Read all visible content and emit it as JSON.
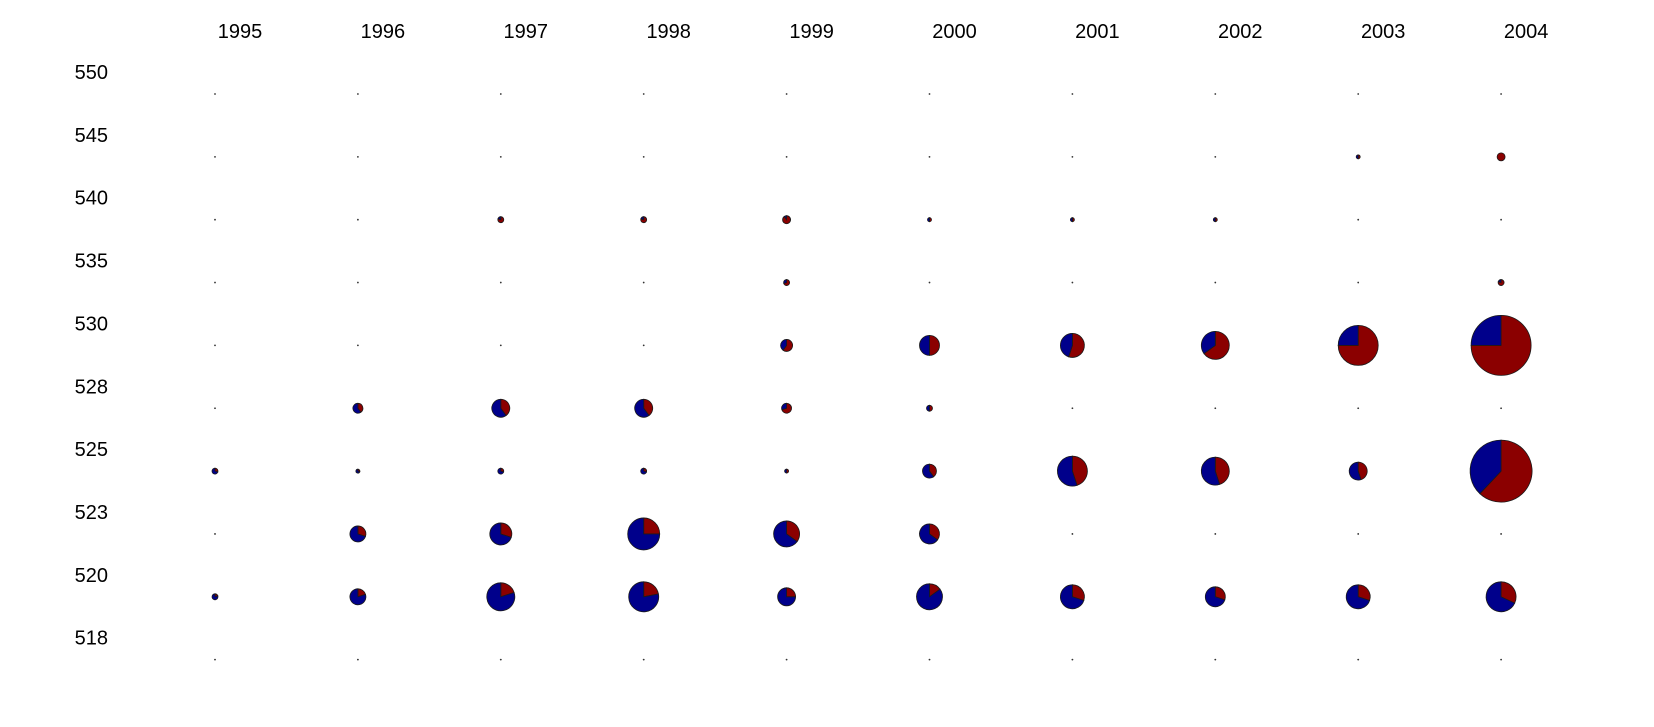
{
  "chart_data": {
    "type": "pie-grid",
    "title": "",
    "xlabel": "",
    "ylabel": "",
    "grid": false,
    "legend": "none",
    "x_labels": [
      "1995",
      "1996",
      "1997",
      "1998",
      "1999",
      "2000",
      "2001",
      "2002",
      "2003",
      "2004"
    ],
    "y_labels": [
      "550",
      "545",
      "540",
      "535",
      "530",
      "528",
      "525",
      "523",
      "520",
      "518"
    ],
    "series_colors": {
      "blue": "#00008b",
      "red": "#8b0000"
    },
    "cells": [
      {
        "x": "2004",
        "y": "545",
        "size": 4,
        "red_fraction": 1.0
      },
      {
        "x": "2003",
        "y": "545",
        "size": 2,
        "red_fraction": 0.5
      },
      {
        "x": "1997",
        "y": "540",
        "size": 3,
        "red_fraction": 0.8
      },
      {
        "x": "1998",
        "y": "540",
        "size": 3,
        "red_fraction": 0.8
      },
      {
        "x": "1999",
        "y": "540",
        "size": 4,
        "red_fraction": 0.9
      },
      {
        "x": "2000",
        "y": "540",
        "size": 2,
        "red_fraction": 0.5
      },
      {
        "x": "2001",
        "y": "540",
        "size": 2,
        "red_fraction": 0.5
      },
      {
        "x": "2002",
        "y": "540",
        "size": 2,
        "red_fraction": 0.5
      },
      {
        "x": "1999",
        "y": "535",
        "size": 3,
        "red_fraction": 0.7
      },
      {
        "x": "2004",
        "y": "535",
        "size": 3,
        "red_fraction": 0.8
      },
      {
        "x": "1999",
        "y": "530",
        "size": 6,
        "red_fraction": 0.6
      },
      {
        "x": "2000",
        "y": "530",
        "size": 10,
        "red_fraction": 0.5
      },
      {
        "x": "2001",
        "y": "530",
        "size": 12,
        "red_fraction": 0.55
      },
      {
        "x": "2002",
        "y": "530",
        "size": 14,
        "red_fraction": 0.65
      },
      {
        "x": "2003",
        "y": "530",
        "size": 20,
        "red_fraction": 0.75
      },
      {
        "x": "2004",
        "y": "530",
        "size": 30,
        "red_fraction": 0.75
      },
      {
        "x": "1996",
        "y": "528",
        "size": 5,
        "red_fraction": 0.4
      },
      {
        "x": "1997",
        "y": "528",
        "size": 9,
        "red_fraction": 0.4
      },
      {
        "x": "1998",
        "y": "528",
        "size": 9,
        "red_fraction": 0.4
      },
      {
        "x": "1999",
        "y": "528",
        "size": 5,
        "red_fraction": 0.7
      },
      {
        "x": "2000",
        "y": "528",
        "size": 3,
        "red_fraction": 0.5
      },
      {
        "x": "1995",
        "y": "525",
        "size": 3,
        "red_fraction": 0.3
      },
      {
        "x": "1996",
        "y": "525",
        "size": 2,
        "red_fraction": 0.3
      },
      {
        "x": "1997",
        "y": "525",
        "size": 3,
        "red_fraction": 0.3
      },
      {
        "x": "1998",
        "y": "525",
        "size": 3,
        "red_fraction": 0.3
      },
      {
        "x": "1999",
        "y": "525",
        "size": 2,
        "red_fraction": 0.5
      },
      {
        "x": "2000",
        "y": "525",
        "size": 7,
        "red_fraction": 0.4
      },
      {
        "x": "2001",
        "y": "525",
        "size": 15,
        "red_fraction": 0.45
      },
      {
        "x": "2002",
        "y": "525",
        "size": 14,
        "red_fraction": 0.45
      },
      {
        "x": "2003",
        "y": "525",
        "size": 9,
        "red_fraction": 0.45
      },
      {
        "x": "2004",
        "y": "525",
        "size": 31,
        "red_fraction": 0.62
      },
      {
        "x": "1996",
        "y": "523",
        "size": 8,
        "red_fraction": 0.3
      },
      {
        "x": "1997",
        "y": "523",
        "size": 11,
        "red_fraction": 0.3
      },
      {
        "x": "1998",
        "y": "523",
        "size": 16,
        "red_fraction": 0.25
      },
      {
        "x": "1999",
        "y": "523",
        "size": 13,
        "red_fraction": 0.35
      },
      {
        "x": "2000",
        "y": "523",
        "size": 10,
        "red_fraction": 0.35
      },
      {
        "x": "1995",
        "y": "520",
        "size": 3,
        "red_fraction": 0.2
      },
      {
        "x": "1996",
        "y": "520",
        "size": 8,
        "red_fraction": 0.2
      },
      {
        "x": "1997",
        "y": "520",
        "size": 14,
        "red_fraction": 0.2
      },
      {
        "x": "1998",
        "y": "520",
        "size": 15,
        "red_fraction": 0.22
      },
      {
        "x": "1999",
        "y": "520",
        "size": 9,
        "red_fraction": 0.25
      },
      {
        "x": "2000",
        "y": "520",
        "size": 13,
        "red_fraction": 0.15
      },
      {
        "x": "2001",
        "y": "520",
        "size": 12,
        "red_fraction": 0.3
      },
      {
        "x": "2002",
        "y": "520",
        "size": 10,
        "red_fraction": 0.3
      },
      {
        "x": "2003",
        "y": "520",
        "size": 12,
        "red_fraction": 0.3
      },
      {
        "x": "2004",
        "y": "520",
        "size": 15,
        "red_fraction": 0.32
      }
    ]
  }
}
